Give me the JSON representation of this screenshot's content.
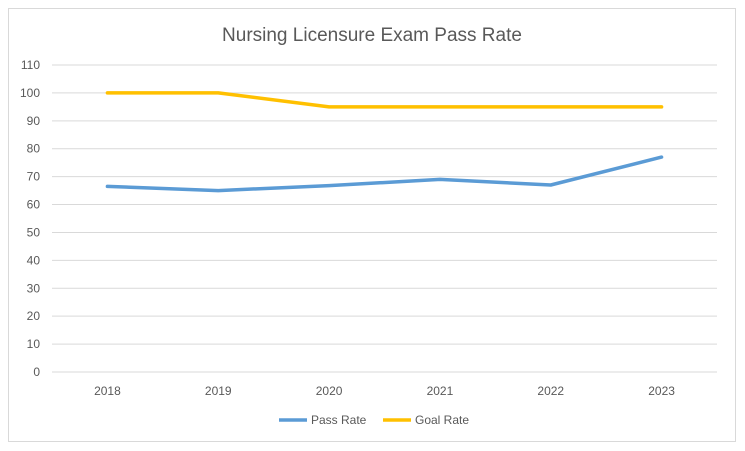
{
  "chart_data": {
    "type": "line",
    "title": "Nursing Licensure Exam Pass Rate",
    "xlabel": "",
    "ylabel": "",
    "categories": [
      "2018",
      "2019",
      "2020",
      "2021",
      "2022",
      "2023"
    ],
    "series": [
      {
        "name": "Pass Rate",
        "color": "#5B9BD5",
        "values": [
          66.5,
          65,
          66.8,
          69,
          67,
          77
        ]
      },
      {
        "name": "Goal Rate",
        "color": "#FFC000",
        "values": [
          100,
          100,
          95,
          95,
          95,
          95
        ]
      }
    ],
    "ylim": [
      0,
      110
    ],
    "yticks": [
      0,
      10,
      20,
      30,
      40,
      50,
      60,
      70,
      80,
      90,
      100,
      110
    ],
    "grid": true,
    "legend": "bottom"
  }
}
